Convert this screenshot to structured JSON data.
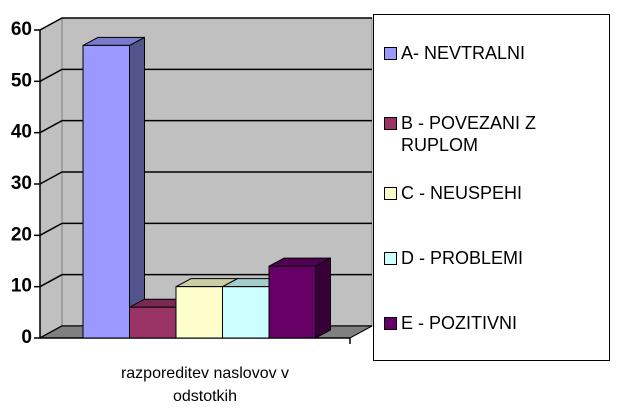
{
  "chart_data": {
    "type": "bar3d",
    "categories": [
      "razporeditev naslovov v odstotkih"
    ],
    "series": [
      {
        "name": "A- NEVTRALNI",
        "color": "#9999ff",
        "values": [
          57
        ]
      },
      {
        "name": "B - POVEZANI Z RUPLOM",
        "color": "#993366",
        "values": [
          6
        ]
      },
      {
        "name": "C - NEUSPEHI",
        "color": "#ffffcc",
        "values": [
          10
        ]
      },
      {
        "name": "D - PROBLEMI",
        "color": "#ccffff",
        "values": [
          10
        ]
      },
      {
        "name": "E - POZITIVNI",
        "color": "#660066",
        "values": [
          14
        ]
      }
    ],
    "ylim": [
      0,
      60
    ],
    "yticks": [
      0,
      10,
      20,
      30,
      40,
      50,
      60
    ],
    "grid": true,
    "legend": "right"
  }
}
